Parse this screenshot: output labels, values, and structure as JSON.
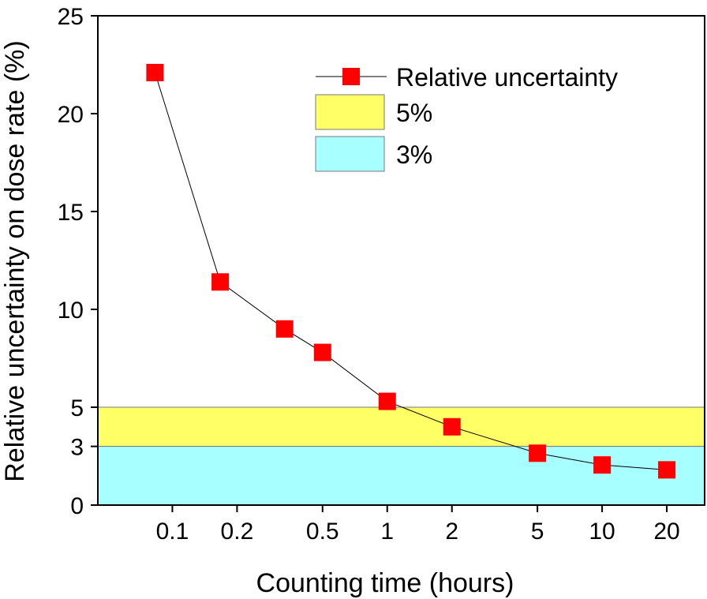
{
  "chart_data": {
    "type": "line",
    "xlabel": "Counting time (hours)",
    "ylabel": "Relative uncertainty on dose rate (%)",
    "x_scale": "log",
    "xlim": [
      0.045,
      30
    ],
    "ylim": [
      0,
      25
    ],
    "x_ticks": [
      {
        "value": 0.1,
        "label": "0.1"
      },
      {
        "value": 0.2,
        "label": "0.2"
      },
      {
        "value": 0.5,
        "label": "0.5"
      },
      {
        "value": 1,
        "label": "1"
      },
      {
        "value": 2,
        "label": "2"
      },
      {
        "value": 5,
        "label": "5"
      },
      {
        "value": 10,
        "label": "10"
      },
      {
        "value": 20,
        "label": "20"
      }
    ],
    "y_ticks": [
      {
        "value": 0,
        "label": "0"
      },
      {
        "value": 3,
        "label": "3"
      },
      {
        "value": 5,
        "label": "5"
      },
      {
        "value": 10,
        "label": "10"
      },
      {
        "value": 15,
        "label": "15"
      },
      {
        "value": 20,
        "label": "20"
      },
      {
        "value": 25,
        "label": "25"
      }
    ],
    "series": [
      {
        "name": "Relative uncertainty",
        "color": "#ff0000",
        "marker": "square",
        "line_color": "#000000",
        "x": [
          0.083,
          0.167,
          0.333,
          0.5,
          1,
          2,
          5,
          10,
          20
        ],
        "y": [
          22.1,
          11.4,
          9.0,
          7.8,
          5.3,
          4.0,
          2.65,
          2.05,
          1.8
        ]
      }
    ],
    "bands": [
      {
        "name": "5%",
        "from": 3,
        "to": 5,
        "color": "#ffff66"
      },
      {
        "name": "3%",
        "from": 0,
        "to": 3,
        "color": "#a8ffff"
      }
    ],
    "grid": false,
    "legend_position": "top-right"
  }
}
